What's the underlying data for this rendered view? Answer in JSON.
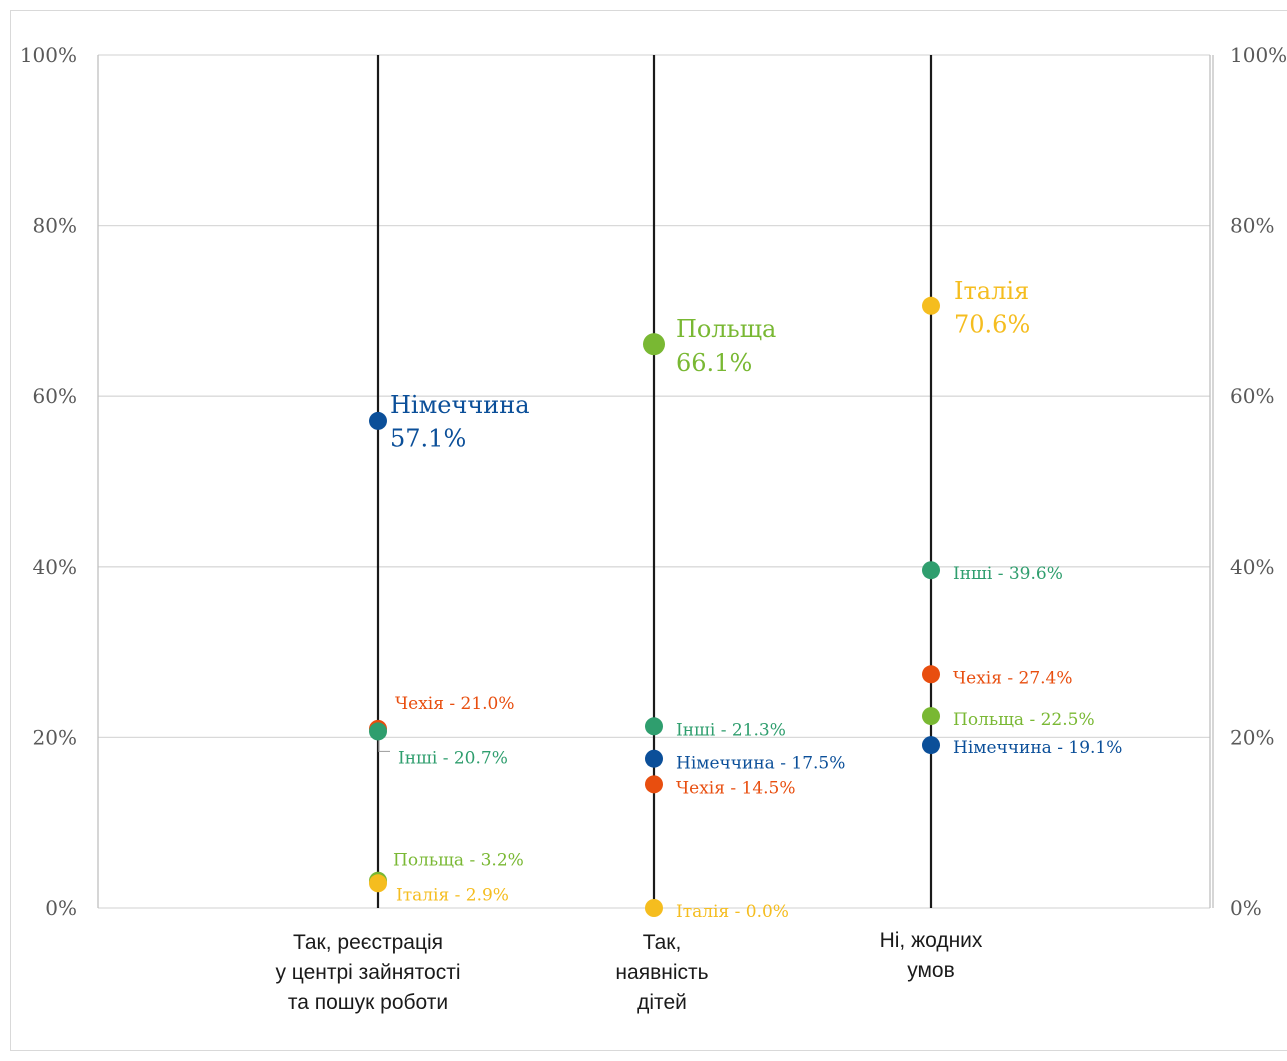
{
  "chart_data": {
    "type": "scatter",
    "y_axis": {
      "ylim": [
        0,
        100
      ],
      "ticks": [
        0,
        20,
        40,
        60,
        80,
        100
      ],
      "tick_labels": [
        "0%",
        "20%",
        "40%",
        "60%",
        "80%",
        "100%"
      ],
      "secondary_axis": true
    },
    "grid": true,
    "categories": [
      {
        "id": "registration",
        "label_lines": [
          "Так, реєстрація",
          "у центрі зайнятості",
          "та пошук роботи"
        ]
      },
      {
        "id": "children",
        "label_lines": [
          "Так,",
          "наявність",
          "дітей"
        ]
      },
      {
        "id": "none",
        "label_lines": [
          "Ні, жодних",
          "умов"
        ]
      }
    ],
    "series": [
      {
        "name": "Німеччина",
        "color": "#0b4f99",
        "values": [
          57.1,
          17.5,
          19.1
        ]
      },
      {
        "name": "Польща",
        "color": "#79b833",
        "values": [
          3.2,
          66.1,
          22.5
        ]
      },
      {
        "name": "Італія",
        "color": "#f5bd1f",
        "values": [
          2.9,
          0.0,
          70.6
        ]
      },
      {
        "name": "Чехія",
        "color": "#e84e0f",
        "values": [
          21.0,
          14.5,
          27.4
        ]
      },
      {
        "name": "Інші",
        "color": "#2f9e6e",
        "values": [
          20.7,
          21.3,
          39.6
        ]
      }
    ],
    "point_labels": [
      [
        {
          "series": "Німеччина",
          "text": [
            "Німеччина",
            "57.1%"
          ],
          "highlight": true
        },
        {
          "series": "Чехія",
          "text": [
            "Чехія -  21.0%"
          ]
        },
        {
          "series": "Інші",
          "text": [
            "Інші -  20.7%"
          ]
        },
        {
          "series": "Польща",
          "text": [
            "Польща - 3.2%"
          ]
        },
        {
          "series": "Італія",
          "text": [
            "Італія - 2.9%"
          ]
        }
      ],
      [
        {
          "series": "Польща",
          "text": [
            "Польща",
            "66.1%"
          ],
          "highlight": true
        },
        {
          "series": "Інші",
          "text": [
            "Інші -  21.3%"
          ]
        },
        {
          "series": "Німеччина",
          "text": [
            "Німеччина -  17.5%"
          ]
        },
        {
          "series": "Чехія",
          "text": [
            "Чехія -  14.5%"
          ]
        },
        {
          "series": "Італія",
          "text": [
            "Італія - 0.0%"
          ]
        }
      ],
      [
        {
          "series": "Італія",
          "text": [
            "Італія",
            "70.6%"
          ],
          "highlight": true
        },
        {
          "series": "Інші",
          "text": [
            "Інші -  39.6%"
          ]
        },
        {
          "series": "Чехія",
          "text": [
            "Чехія -  27.4%"
          ]
        },
        {
          "series": "Польща",
          "text": [
            "Польща - 22.5%"
          ]
        },
        {
          "series": "Німеччина",
          "text": [
            "Німеччина -  19.1%"
          ]
        }
      ]
    ]
  }
}
